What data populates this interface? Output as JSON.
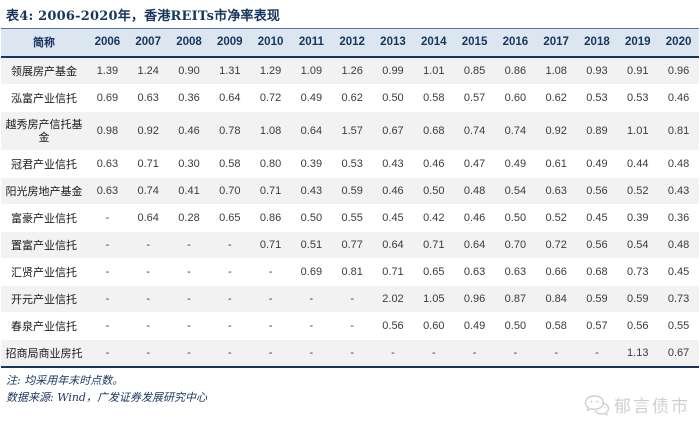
{
  "title": "表4:  2006-2020年，香港REITs市净率表现",
  "table": {
    "name_header": "简称",
    "years": [
      "2006",
      "2007",
      "2008",
      "2009",
      "2010",
      "2011",
      "2012",
      "2013",
      "2014",
      "2015",
      "2016",
      "2017",
      "2018",
      "2019",
      "2020"
    ],
    "rows": [
      {
        "name": "领展房产基金",
        "values": [
          "1.39",
          "1.24",
          "0.90",
          "1.31",
          "1.29",
          "1.09",
          "1.26",
          "0.99",
          "1.01",
          "0.85",
          "0.86",
          "1.08",
          "0.93",
          "0.91",
          "0.96"
        ]
      },
      {
        "name": "泓富产业信托",
        "values": [
          "0.69",
          "0.63",
          "0.36",
          "0.64",
          "0.72",
          "0.49",
          "0.62",
          "0.50",
          "0.58",
          "0.57",
          "0.60",
          "0.62",
          "0.53",
          "0.53",
          "0.46"
        ]
      },
      {
        "name": "越秀房产信托基金",
        "values": [
          "0.98",
          "0.92",
          "0.46",
          "0.78",
          "1.08",
          "0.64",
          "1.57",
          "0.67",
          "0.68",
          "0.74",
          "0.74",
          "0.92",
          "0.89",
          "1.01",
          "0.81"
        ]
      },
      {
        "name": "冠君产业信托",
        "values": [
          "0.63",
          "0.71",
          "0.30",
          "0.58",
          "0.80",
          "0.39",
          "0.53",
          "0.43",
          "0.46",
          "0.47",
          "0.49",
          "0.61",
          "0.49",
          "0.44",
          "0.48"
        ]
      },
      {
        "name": "阳光房地产基金",
        "values": [
          "0.63",
          "0.74",
          "0.41",
          "0.70",
          "0.71",
          "0.43",
          "0.59",
          "0.46",
          "0.50",
          "0.48",
          "0.54",
          "0.63",
          "0.56",
          "0.52",
          "0.43"
        ]
      },
      {
        "name": "富豪产业信托",
        "values": [
          "-",
          "0.64",
          "0.28",
          "0.65",
          "0.86",
          "0.50",
          "0.55",
          "0.45",
          "0.42",
          "0.46",
          "0.50",
          "0.52",
          "0.45",
          "0.39",
          "0.36"
        ]
      },
      {
        "name": "置富产业信托",
        "values": [
          "-",
          "-",
          "-",
          "-",
          "0.71",
          "0.51",
          "0.77",
          "0.64",
          "0.71",
          "0.64",
          "0.70",
          "0.72",
          "0.56",
          "0.54",
          "0.48"
        ]
      },
      {
        "name": "汇贤产业信托",
        "values": [
          "-",
          "-",
          "-",
          "-",
          "-",
          "0.69",
          "0.81",
          "0.71",
          "0.65",
          "0.63",
          "0.63",
          "0.66",
          "0.68",
          "0.73",
          "0.45"
        ]
      },
      {
        "name": "开元产业信托",
        "values": [
          "-",
          "-",
          "-",
          "-",
          "-",
          "-",
          "-",
          "2.02",
          "1.05",
          "0.96",
          "0.87",
          "0.84",
          "0.59",
          "0.59",
          "0.73"
        ]
      },
      {
        "name": "春泉产业信托",
        "values": [
          "-",
          "-",
          "-",
          "-",
          "-",
          "-",
          "-",
          "0.56",
          "0.60",
          "0.49",
          "0.50",
          "0.58",
          "0.57",
          "0.56",
          "0.55"
        ]
      },
      {
        "name": "招商局商业房托",
        "values": [
          "-",
          "-",
          "-",
          "-",
          "-",
          "-",
          "-",
          "-",
          "-",
          "-",
          "-",
          "-",
          "-",
          "1.13",
          "0.67"
        ]
      }
    ]
  },
  "notes": {
    "note1": "注: 均采用年末时点数。",
    "note2": "数据来源: Wind，广发证券发展研究中心"
  },
  "watermark": {
    "label": "郁言债市",
    "icon": "wechat-icon"
  },
  "colors": {
    "accent_navy": "#17365d",
    "header_bg": "#dce6f1",
    "stripe_bg": "#f2f2f2",
    "body_text": "#3b3b3b",
    "watermark_gray": "#cfcfcf"
  }
}
